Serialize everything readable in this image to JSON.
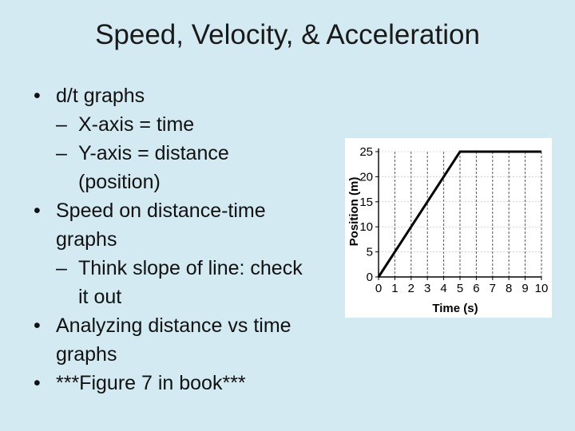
{
  "slide": {
    "title": "Speed, Velocity, & Acceleration",
    "bullets": [
      {
        "text": "d/t graphs",
        "subs": [
          "X-axis = time",
          "Y-axis = distance (position)"
        ]
      },
      {
        "text": "Speed on distance-time graphs",
        "subs": [
          "Think slope of line: check it out"
        ]
      },
      {
        "text": "Analyzing distance vs time graphs",
        "subs": []
      },
      {
        "text": "***Figure 7 in book***",
        "subs": []
      }
    ]
  },
  "chart_data": {
    "type": "line",
    "xlabel": "Time (s)",
    "ylabel": "Position (m)",
    "x": [
      0,
      5,
      10
    ],
    "y": [
      0,
      25,
      25
    ],
    "xlim": [
      0,
      10
    ],
    "ylim": [
      0,
      25
    ],
    "x_ticks": [
      "0",
      "1",
      "2",
      "3",
      "4",
      "5",
      "6",
      "7",
      "8",
      "9",
      "10"
    ],
    "y_ticks": [
      "0",
      "5",
      "10",
      "15",
      "20",
      "25"
    ],
    "grid": "vertical dashed",
    "line_color": "#000000"
  }
}
